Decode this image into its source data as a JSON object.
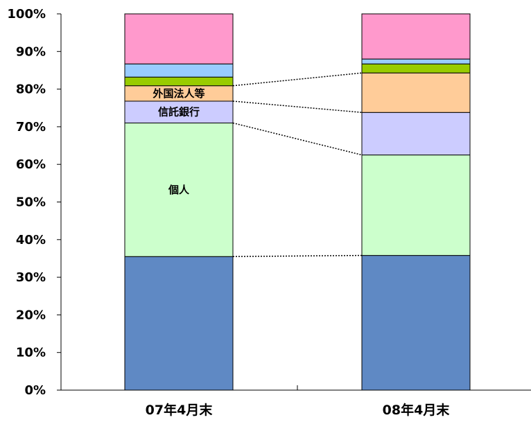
{
  "chart_data": {
    "type": "bar",
    "stacked": true,
    "normalized": true,
    "categories": [
      "07年4月末",
      "08年4月末"
    ],
    "series": [
      {
        "key": "bottom",
        "name": "",
        "color": "#5f89c4",
        "values": [
          35.5,
          35.8
        ]
      },
      {
        "key": "individual",
        "name": "個人",
        "color": "#ccffcc",
        "values": [
          35.5,
          26.7
        ]
      },
      {
        "key": "trust_bank",
        "name": "信託銀行",
        "color": "#ccccff",
        "values": [
          5.8,
          11.3
        ]
      },
      {
        "key": "foreign",
        "name": "外国法人等",
        "color": "#ffcc99",
        "values": [
          4.1,
          10.5
        ]
      },
      {
        "key": "green",
        "name": "",
        "color": "#99cc00",
        "values": [
          2.3,
          2.4
        ]
      },
      {
        "key": "lightblue",
        "name": "",
        "color": "#99ccff",
        "values": [
          3.5,
          1.3
        ]
      },
      {
        "key": "pink",
        "name": "",
        "color": "#ff99cc",
        "values": [
          13.3,
          12.0
        ]
      }
    ],
    "labeled_series_on_first_bar": [
      "individual",
      "trust_bank",
      "foreign"
    ],
    "connectors": [
      "bottom",
      "individual",
      "trust_bank",
      "foreign"
    ],
    "ylim": [
      0,
      100
    ],
    "yticks": [
      "0%",
      "10%",
      "20%",
      "30%",
      "40%",
      "50%",
      "60%",
      "70%",
      "80%",
      "90%",
      "100%"
    ],
    "grid": false,
    "legend": "none",
    "title": "",
    "xlabel": "",
    "ylabel": ""
  }
}
